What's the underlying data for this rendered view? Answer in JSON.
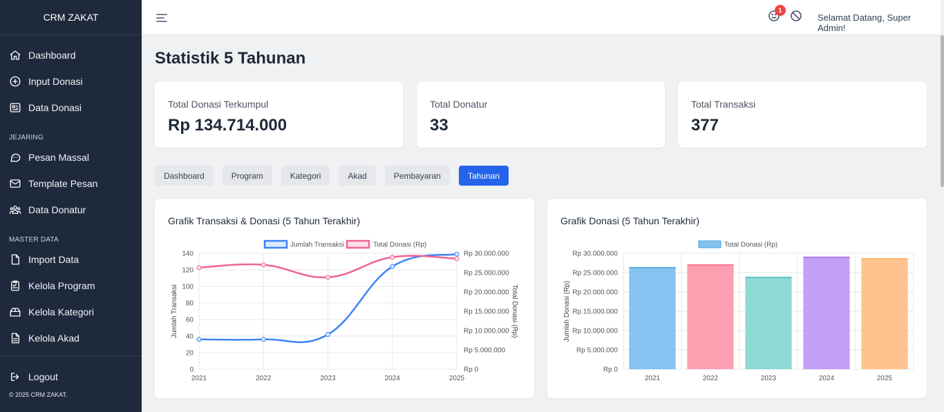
{
  "app": {
    "brand": "CRM ZAKAT",
    "copyright": "© 2025 CRM ZAKAT."
  },
  "sidebar": {
    "main": [
      {
        "label": "Dashboard",
        "icon": "home-icon"
      },
      {
        "label": "Input Donasi",
        "icon": "plus-circle-icon"
      },
      {
        "label": "Data Donasi",
        "icon": "document-list-icon"
      }
    ],
    "section_jejaring": "JEJARING",
    "jejaring": [
      {
        "label": "Pesan Massal",
        "icon": "chat-bubble-icon"
      },
      {
        "label": "Template Pesan",
        "icon": "envelope-icon"
      },
      {
        "label": "Data Donatur",
        "icon": "users-icon"
      }
    ],
    "section_master": "MASTER DATA",
    "master": [
      {
        "label": "Import Data",
        "icon": "file-import-icon"
      },
      {
        "label": "Kelola Program",
        "icon": "clipboard-icon"
      },
      {
        "label": "Kelola Kategori",
        "icon": "box-icon"
      },
      {
        "label": "Kelola Akad",
        "icon": "file-text-icon"
      }
    ],
    "logout": "Logout"
  },
  "topbar": {
    "notification_count": "1",
    "welcome": "Selamat Datang, Super Admin!"
  },
  "page": {
    "title": "Statistik 5 Tahunan"
  },
  "stats": [
    {
      "label": "Total Donasi Terkumpul",
      "value": "Rp 134.714.000"
    },
    {
      "label": "Total Donatur",
      "value": "33"
    },
    {
      "label": "Total Transaksi",
      "value": "377"
    }
  ],
  "tabs": [
    "Dashboard",
    "Program",
    "Kategori",
    "Akad",
    "Pembayaran",
    "Tahunan"
  ],
  "active_tab": "Tahunan",
  "colors": {
    "accent": "#2563eb",
    "line_blue": "#3b82f6",
    "line_pink": "#f06292"
  },
  "chart_data": [
    {
      "type": "line",
      "title": "Grafik Transaksi & Donasi (5 Tahun Terakhir)",
      "x": [
        "2021",
        "2022",
        "2023",
        "2024",
        "2025"
      ],
      "series": [
        {
          "name": "Jumlah Transaksi",
          "axis": "left",
          "values": [
            36,
            36,
            42,
            124,
            139
          ]
        },
        {
          "name": "Total Donasi (Rp)",
          "axis": "right",
          "values": [
            26300000,
            27000000,
            23800000,
            29000000,
            28600000
          ]
        }
      ],
      "ylabel_left": "Jumlah Transaksi",
      "ylabel_right": "Total Donasi (Rp)",
      "ylim_left": [
        0,
        140
      ],
      "ylim_right": [
        0,
        30000000
      ],
      "yticks_left": [
        "0",
        "20",
        "40",
        "60",
        "80",
        "100",
        "120",
        "140"
      ],
      "yticks_right": [
        "Rp 0",
        "Rp 5.000.000",
        "Rp 10.000.000",
        "Rp 15.000.000",
        "Rp 20.000.000",
        "Rp 25.000.000",
        "Rp 30.000.000"
      ],
      "legend": "top"
    },
    {
      "type": "bar",
      "title": "Grafik Donasi (5 Tahun Terakhir)",
      "categories": [
        "2021",
        "2022",
        "2023",
        "2024",
        "2025"
      ],
      "series": [
        {
          "name": "Total Donasi (Rp)",
          "values": [
            26300000,
            27000000,
            23800000,
            29000000,
            28600000
          ]
        }
      ],
      "bar_colors": [
        "#85c3f0",
        "#fb9fb1",
        "#8dd9d4",
        "#c39ff7",
        "#fec48f"
      ],
      "bar_borders": [
        "#4aa3e2",
        "#f36a86",
        "#4cbfb8",
        "#a16ef5",
        "#fba755"
      ],
      "ylabel": "Jumlah Donasi (Rp)",
      "ylim": [
        0,
        30000000
      ],
      "yticks": [
        "Rp 0",
        "Rp 5.000.000",
        "Rp 10.000.000",
        "Rp 15.000.000",
        "Rp 20.000.000",
        "Rp 25.000.000",
        "Rp 30.000.000"
      ],
      "legend": "top"
    }
  ]
}
